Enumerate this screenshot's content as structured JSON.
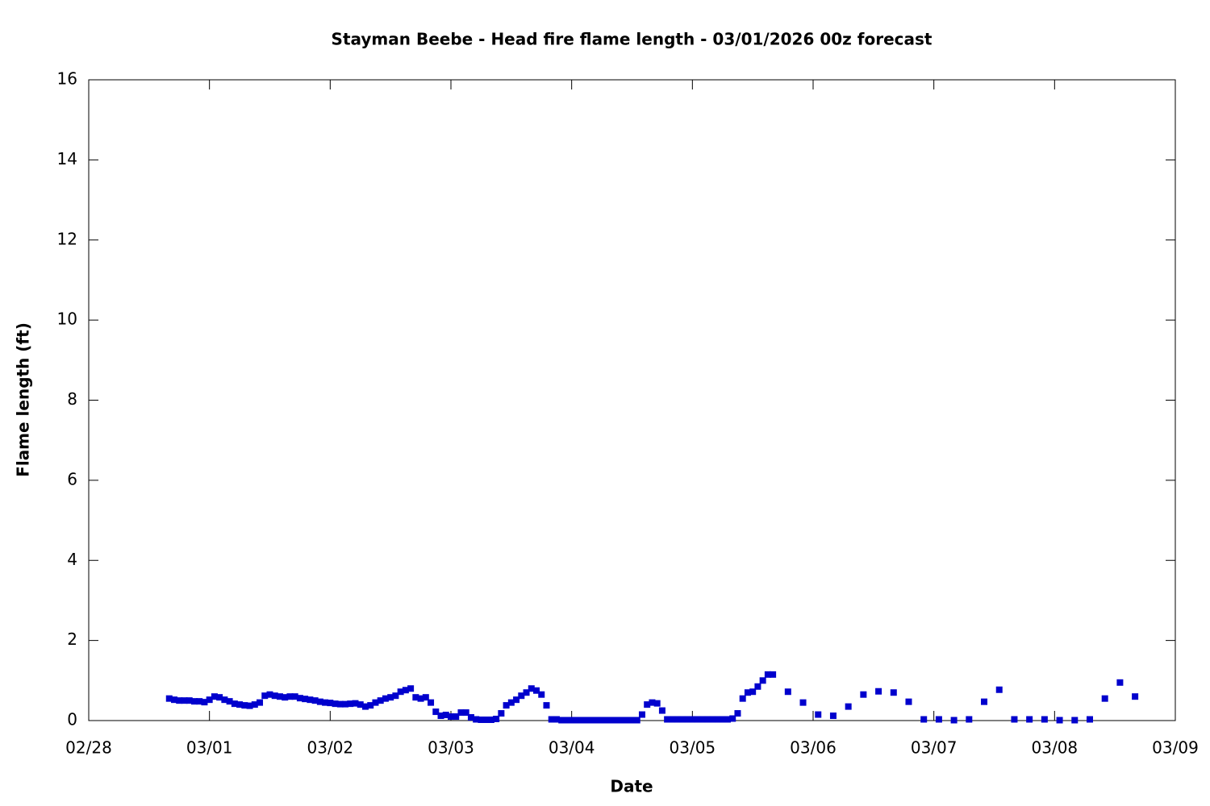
{
  "chart_data": {
    "type": "scatter",
    "title": "Stayman Beebe - Head fire flame length - 03/01/2026 00z forecast",
    "x_label": "Date",
    "y_label": "Flame length (ft)",
    "xlim": [
      0,
      216
    ],
    "ylim": [
      0,
      16
    ],
    "xticks": [
      {
        "value": 0,
        "label": "02/28"
      },
      {
        "value": 24,
        "label": "03/01"
      },
      {
        "value": 48,
        "label": "03/02"
      },
      {
        "value": 72,
        "label": "03/03"
      },
      {
        "value": 96,
        "label": "03/04"
      },
      {
        "value": 120,
        "label": "03/05"
      },
      {
        "value": 144,
        "label": "03/06"
      },
      {
        "value": 168,
        "label": "03/07"
      },
      {
        "value": 192,
        "label": "03/08"
      },
      {
        "value": 216,
        "label": "03/09"
      }
    ],
    "yticks": [
      0,
      2,
      4,
      6,
      8,
      10,
      12,
      14,
      16
    ],
    "series": [
      {
        "color": "#0000cd",
        "x": [
          16,
          17,
          18,
          19,
          20,
          21,
          22,
          23,
          24,
          25,
          26,
          27,
          28,
          29,
          30,
          31,
          32,
          33,
          34,
          35,
          36,
          37,
          38,
          39,
          40,
          41,
          42,
          43,
          44,
          45,
          46,
          47,
          48,
          49,
          50,
          51,
          52,
          53,
          54,
          55,
          56,
          57,
          58,
          59,
          60,
          61,
          62,
          63,
          64,
          65,
          66,
          67,
          68,
          69,
          70,
          71,
          72,
          73,
          74,
          75,
          76,
          77,
          78,
          79,
          80,
          81,
          82,
          83,
          84,
          85,
          86,
          87,
          88,
          89,
          90,
          91,
          92,
          93,
          94,
          95,
          96,
          97,
          98,
          99,
          100,
          101,
          102,
          103,
          104,
          105,
          106,
          107,
          108,
          109,
          110,
          111,
          112,
          113,
          114,
          115,
          116,
          117,
          118,
          119,
          120,
          121,
          122,
          123,
          124,
          125,
          126,
          127,
          128,
          129,
          130,
          131,
          132,
          133,
          134,
          135,
          136,
          139,
          142,
          145,
          148,
          151,
          154,
          157,
          160,
          163,
          166,
          169,
          172,
          175,
          178,
          181,
          184,
          187,
          190,
          193,
          196,
          199,
          202,
          205,
          208
        ],
        "values": [
          0.55,
          0.52,
          0.5,
          0.5,
          0.5,
          0.48,
          0.48,
          0.46,
          0.52,
          0.6,
          0.58,
          0.52,
          0.48,
          0.42,
          0.4,
          0.38,
          0.37,
          0.4,
          0.45,
          0.62,
          0.65,
          0.62,
          0.6,
          0.58,
          0.6,
          0.6,
          0.56,
          0.54,
          0.52,
          0.5,
          0.47,
          0.45,
          0.44,
          0.42,
          0.41,
          0.41,
          0.42,
          0.43,
          0.4,
          0.35,
          0.38,
          0.45,
          0.5,
          0.55,
          0.58,
          0.62,
          0.72,
          0.76,
          0.8,
          0.58,
          0.55,
          0.58,
          0.45,
          0.22,
          0.12,
          0.14,
          0.1,
          0.1,
          0.2,
          0.2,
          0.08,
          0.03,
          0.02,
          0.02,
          0.02,
          0.04,
          0.18,
          0.38,
          0.45,
          0.52,
          0.62,
          0.7,
          0.8,
          0.75,
          0.65,
          0.38,
          0.03,
          0.03,
          0.01,
          0.01,
          0.01,
          0.01,
          0.01,
          0.01,
          0.01,
          0.01,
          0.01,
          0.01,
          0.01,
          0.01,
          0.01,
          0.01,
          0.01,
          0.01,
          0.15,
          0.4,
          0.45,
          0.43,
          0.25,
          0.03,
          0.03,
          0.03,
          0.03,
          0.03,
          0.03,
          0.03,
          0.03,
          0.03,
          0.03,
          0.03,
          0.03,
          0.03,
          0.05,
          0.18,
          0.55,
          0.7,
          0.72,
          0.85,
          1.0,
          1.15,
          1.15,
          0.72,
          0.45,
          0.15,
          0.12,
          0.35,
          0.65,
          0.73,
          0.7,
          0.47,
          0.03,
          0.03,
          0.01,
          0.03,
          0.47,
          0.77,
          0.03,
          0.03,
          0.03,
          0.01,
          0.01,
          0.03,
          0.55,
          0.95,
          0.6
        ]
      }
    ]
  }
}
